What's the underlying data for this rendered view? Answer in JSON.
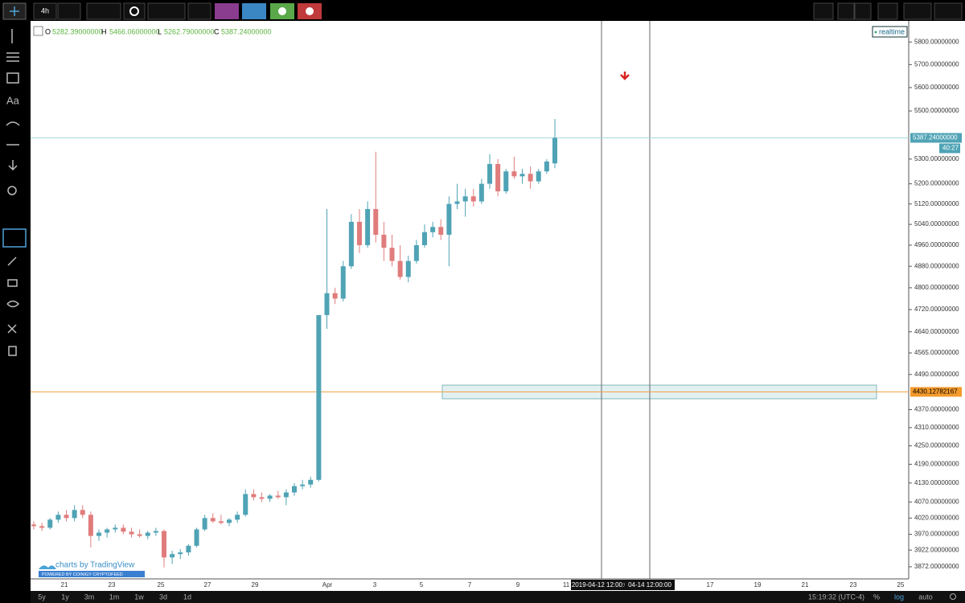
{
  "toolbar": {
    "interval": "4h"
  },
  "legend": {
    "o_label": "O",
    "open": "5282.39000000",
    "h_label": "H",
    "high": "5466.06000000",
    "l_label": "L",
    "low": "5262.79000000",
    "c_label": "C",
    "close": "5387.24000000",
    "realtime": "realtime"
  },
  "watermark": {
    "brand": "charts by TradingView",
    "powered": "POWERED BY COINIGY CRYPTOFEED"
  },
  "chart_data": {
    "type": "candlestick",
    "log_scale": true,
    "up_color": "#4fa3b5",
    "down_color": "#e07c7c",
    "ylim": [
      3836,
      5895
    ],
    "yticks": [
      {
        "value": 5800,
        "label": "5800.00000000"
      },
      {
        "value": 5700,
        "label": "5700.00000000"
      },
      {
        "value": 5600,
        "label": "5600.00000000"
      },
      {
        "value": 5500,
        "label": "5500.00000000"
      },
      {
        "value": 5300,
        "label": "5300.00000000"
      },
      {
        "value": 5200,
        "label": "5200.00000000"
      },
      {
        "value": 5120,
        "label": "5120.00000000"
      },
      {
        "value": 5040,
        "label": "5040.00000000"
      },
      {
        "value": 4960,
        "label": "4960.00000000"
      },
      {
        "value": 4880,
        "label": "4880.00000000"
      },
      {
        "value": 4800,
        "label": "4800.00000000"
      },
      {
        "value": 4720,
        "label": "4720.00000000"
      },
      {
        "value": 4640,
        "label": "4640.00000000"
      },
      {
        "value": 4565,
        "label": "4565.00000000"
      },
      {
        "value": 4490,
        "label": "4490.00000000"
      },
      {
        "value": 4370,
        "label": "4370.00000000"
      },
      {
        "value": 4310,
        "label": "4310.00000000"
      },
      {
        "value": 4250,
        "label": "4250.00000000"
      },
      {
        "value": 4190,
        "label": "4190.00000000"
      },
      {
        "value": 4130,
        "label": "4130.00000000"
      },
      {
        "value": 4070,
        "label": "4070.00000000"
      },
      {
        "value": 4020,
        "label": "4020.00000000"
      },
      {
        "value": 3970,
        "label": "3970.00000000"
      },
      {
        "value": 3922,
        "label": "3922.00000000"
      },
      {
        "value": 3872,
        "label": "3872.00000000"
      }
    ],
    "xticks": [
      "21",
      "23",
      "25",
      "27",
      "29",
      "Apr",
      "3",
      "5",
      "7",
      "9",
      "11",
      "17",
      "19",
      "21",
      "23",
      "25"
    ],
    "crosshair_labels": [
      "2019-04-12 12:00:00",
      "04-14 12:00:00"
    ],
    "last_price": {
      "value": 5387.24,
      "label": "5387.24000000",
      "countdown": "40:27"
    },
    "level": {
      "value": 4430.12782167,
      "label": "4430.12782167"
    },
    "candles": [
      [
        4000,
        4010,
        3985,
        3995
      ],
      [
        3995,
        4005,
        3980,
        3990
      ],
      [
        3990,
        4020,
        3985,
        4015
      ],
      [
        4015,
        4040,
        4005,
        4030
      ],
      [
        4030,
        4045,
        4010,
        4020
      ],
      [
        4020,
        4060,
        4010,
        4045
      ],
      [
        4045,
        4060,
        4020,
        4030
      ],
      [
        4030,
        4040,
        3930,
        3965
      ],
      [
        3965,
        3985,
        3950,
        3975
      ],
      [
        3975,
        3990,
        3960,
        3985
      ],
      [
        3985,
        4000,
        3975,
        3990
      ],
      [
        3990,
        4000,
        3970,
        3978
      ],
      [
        3978,
        3990,
        3960,
        3970
      ],
      [
        3970,
        3985,
        3960,
        3965
      ],
      [
        3965,
        3980,
        3955,
        3975
      ],
      [
        3975,
        3990,
        3965,
        3980
      ],
      [
        3980,
        3985,
        3870,
        3900
      ],
      [
        3900,
        3920,
        3880,
        3910
      ],
      [
        3910,
        3925,
        3895,
        3915
      ],
      [
        3915,
        3940,
        3905,
        3935
      ],
      [
        3935,
        3990,
        3930,
        3985
      ],
      [
        3985,
        4030,
        3980,
        4020
      ],
      [
        4020,
        4035,
        4005,
        4010
      ],
      [
        4010,
        4030,
        4000,
        4005
      ],
      [
        4005,
        4020,
        3995,
        4015
      ],
      [
        4015,
        4040,
        4005,
        4030
      ],
      [
        4030,
        4110,
        4025,
        4095
      ],
      [
        4095,
        4110,
        4075,
        4085
      ],
      [
        4085,
        4100,
        4070,
        4080
      ],
      [
        4080,
        4095,
        4070,
        4090
      ],
      [
        4090,
        4105,
        4080,
        4085
      ],
      [
        4085,
        4110,
        4060,
        4100
      ],
      [
        4100,
        4130,
        4090,
        4120
      ],
      [
        4120,
        4140,
        4110,
        4125
      ],
      [
        4125,
        4150,
        4115,
        4140
      ],
      [
        4140,
        4700,
        4135,
        4700
      ],
      [
        4700,
        5100,
        4650,
        4780
      ],
      [
        4780,
        4800,
        4740,
        4760
      ],
      [
        4760,
        4900,
        4750,
        4880
      ],
      [
        4880,
        5080,
        4870,
        5050
      ],
      [
        5050,
        5100,
        4930,
        4960
      ],
      [
        4960,
        5130,
        4950,
        5100
      ],
      [
        5100,
        5330,
        4970,
        5000
      ],
      [
        5000,
        5050,
        4900,
        4950
      ],
      [
        4950,
        5000,
        4880,
        4900
      ],
      [
        4900,
        4960,
        4830,
        4840
      ],
      [
        4840,
        4920,
        4820,
        4900
      ],
      [
        4900,
        4980,
        4890,
        4960
      ],
      [
        4960,
        5040,
        4950,
        5010
      ],
      [
        5010,
        5050,
        4990,
        5030
      ],
      [
        5030,
        5060,
        4980,
        5000
      ],
      [
        5000,
        5150,
        4880,
        5120
      ],
      [
        5120,
        5200,
        5100,
        5130
      ],
      [
        5130,
        5180,
        5070,
        5150
      ],
      [
        5150,
        5180,
        5110,
        5130
      ],
      [
        5130,
        5220,
        5120,
        5200
      ],
      [
        5200,
        5320,
        5180,
        5280
      ],
      [
        5280,
        5300,
        5150,
        5170
      ],
      [
        5170,
        5260,
        5160,
        5250
      ],
      [
        5250,
        5310,
        5220,
        5230
      ],
      [
        5230,
        5260,
        5200,
        5240
      ],
      [
        5240,
        5270,
        5180,
        5210
      ],
      [
        5210,
        5260,
        5200,
        5250
      ],
      [
        5250,
        5300,
        5240,
        5290
      ],
      [
        5282.39,
        5466.06,
        5262.79,
        5387.24
      ]
    ]
  },
  "bottom_bar": {
    "ranges": [
      "5y",
      "1y",
      "3m",
      "1m",
      "1w",
      "3d",
      "1d"
    ],
    "clock": "15:19:32 (UTC-4)",
    "percent": "%",
    "log": "log",
    "auto": "auto"
  }
}
